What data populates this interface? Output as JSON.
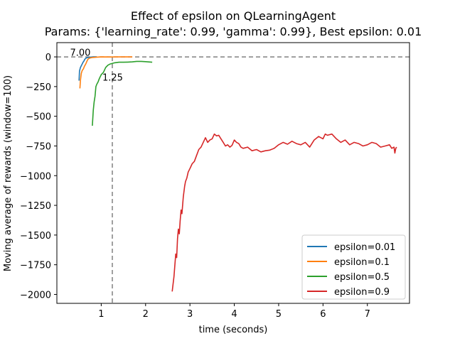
{
  "chart_data": {
    "type": "line",
    "title": "Effect of epsilon on QLearningAgent",
    "subtitle": "Params: {'learning_rate': 0.99, 'gamma': 0.99}, Best epsilon: 0.01",
    "xlabel": "time (seconds)",
    "ylabel": "Moving average of rewards (window=100)",
    "xlim": [
      0.0,
      7.95
    ],
    "ylim": [
      -2075,
      120
    ],
    "xticks": [
      1,
      2,
      3,
      4,
      5,
      6,
      7
    ],
    "yticks": [
      0,
      -250,
      -500,
      -750,
      -1000,
      -1250,
      -1500,
      -1750,
      -2000
    ],
    "legend_position": "lower-right",
    "reference_lines": [
      {
        "orientation": "horizontal",
        "value": 0,
        "style": "dashed",
        "color": "#808080"
      },
      {
        "orientation": "vertical",
        "value": 1.25,
        "style": "dashed",
        "color": "#808080"
      }
    ],
    "annotations": [
      {
        "text": "7.00",
        "x": 0.52,
        "y": 40
      },
      {
        "text": "1.25",
        "x": 1.25,
        "y": -170
      }
    ],
    "series": [
      {
        "name": "epsilon=0.01",
        "color": "#1f77b4",
        "points": [
          [
            0.5,
            -200
          ],
          [
            0.51,
            -120
          ],
          [
            0.53,
            -90
          ],
          [
            0.55,
            -75
          ],
          [
            0.57,
            -60
          ],
          [
            0.59,
            -45
          ],
          [
            0.61,
            -35
          ],
          [
            0.63,
            -20
          ],
          [
            0.66,
            -10
          ],
          [
            0.7,
            -5
          ],
          [
            0.75,
            -2
          ],
          [
            0.82,
            0
          ],
          [
            0.9,
            0
          ]
        ]
      },
      {
        "name": "epsilon=0.1",
        "color": "#ff7f0e",
        "points": [
          [
            0.52,
            -265
          ],
          [
            0.53,
            -200
          ],
          [
            0.55,
            -140
          ],
          [
            0.57,
            -115
          ],
          [
            0.6,
            -100
          ],
          [
            0.62,
            -80
          ],
          [
            0.65,
            -60
          ],
          [
            0.68,
            -35
          ],
          [
            0.7,
            -20
          ],
          [
            0.74,
            -10
          ],
          [
            0.8,
            -5
          ],
          [
            0.9,
            -2
          ],
          [
            1.0,
            0
          ],
          [
            1.2,
            -1
          ],
          [
            1.4,
            0
          ],
          [
            1.6,
            0
          ],
          [
            1.7,
            0
          ]
        ]
      },
      {
        "name": "epsilon=0.5",
        "color": "#2ca02c",
        "points": [
          [
            0.8,
            -580
          ],
          [
            0.82,
            -450
          ],
          [
            0.84,
            -380
          ],
          [
            0.86,
            -330
          ],
          [
            0.88,
            -250
          ],
          [
            0.9,
            -230
          ],
          [
            0.93,
            -210
          ],
          [
            0.96,
            -180
          ],
          [
            1.0,
            -150
          ],
          [
            1.05,
            -130
          ],
          [
            1.1,
            -90
          ],
          [
            1.15,
            -70
          ],
          [
            1.2,
            -60
          ],
          [
            1.3,
            -50
          ],
          [
            1.4,
            -45
          ],
          [
            1.5,
            -45
          ],
          [
            1.6,
            -44
          ],
          [
            1.7,
            -42
          ],
          [
            1.8,
            -38
          ],
          [
            1.9,
            -38
          ],
          [
            2.0,
            -40
          ],
          [
            2.1,
            -43
          ],
          [
            2.15,
            -45
          ]
        ]
      },
      {
        "name": "epsilon=0.9",
        "color": "#d62728",
        "points": [
          [
            2.6,
            -1975
          ],
          [
            2.62,
            -1910
          ],
          [
            2.64,
            -1850
          ],
          [
            2.66,
            -1750
          ],
          [
            2.68,
            -1660
          ],
          [
            2.7,
            -1690
          ],
          [
            2.72,
            -1530
          ],
          [
            2.74,
            -1450
          ],
          [
            2.76,
            -1490
          ],
          [
            2.78,
            -1380
          ],
          [
            2.8,
            -1290
          ],
          [
            2.82,
            -1320
          ],
          [
            2.85,
            -1180
          ],
          [
            2.88,
            -1090
          ],
          [
            2.9,
            -1050
          ],
          [
            2.93,
            -1020
          ],
          [
            2.96,
            -970
          ],
          [
            3.0,
            -940
          ],
          [
            3.05,
            -900
          ],
          [
            3.1,
            -880
          ],
          [
            3.15,
            -830
          ],
          [
            3.2,
            -780
          ],
          [
            3.25,
            -760
          ],
          [
            3.3,
            -720
          ],
          [
            3.35,
            -680
          ],
          [
            3.4,
            -720
          ],
          [
            3.45,
            -700
          ],
          [
            3.5,
            -690
          ],
          [
            3.55,
            -650
          ],
          [
            3.6,
            -665
          ],
          [
            3.65,
            -660
          ],
          [
            3.7,
            -690
          ],
          [
            3.75,
            -720
          ],
          [
            3.8,
            -750
          ],
          [
            3.85,
            -740
          ],
          [
            3.9,
            -760
          ],
          [
            3.95,
            -745
          ],
          [
            4.0,
            -700
          ],
          [
            4.05,
            -720
          ],
          [
            4.1,
            -730
          ],
          [
            4.15,
            -760
          ],
          [
            4.2,
            -770
          ],
          [
            4.3,
            -760
          ],
          [
            4.4,
            -790
          ],
          [
            4.5,
            -780
          ],
          [
            4.6,
            -800
          ],
          [
            4.7,
            -790
          ],
          [
            4.8,
            -785
          ],
          [
            4.9,
            -770
          ],
          [
            5.0,
            -740
          ],
          [
            5.1,
            -720
          ],
          [
            5.2,
            -735
          ],
          [
            5.3,
            -710
          ],
          [
            5.4,
            -730
          ],
          [
            5.5,
            -740
          ],
          [
            5.6,
            -720
          ],
          [
            5.7,
            -760
          ],
          [
            5.8,
            -700
          ],
          [
            5.9,
            -670
          ],
          [
            6.0,
            -690
          ],
          [
            6.05,
            -650
          ],
          [
            6.1,
            -660
          ],
          [
            6.2,
            -650
          ],
          [
            6.3,
            -690
          ],
          [
            6.4,
            -720
          ],
          [
            6.5,
            -700
          ],
          [
            6.6,
            -740
          ],
          [
            6.7,
            -720
          ],
          [
            6.8,
            -730
          ],
          [
            6.9,
            -750
          ],
          [
            7.0,
            -740
          ],
          [
            7.1,
            -720
          ],
          [
            7.2,
            -730
          ],
          [
            7.3,
            -760
          ],
          [
            7.4,
            -750
          ],
          [
            7.5,
            -740
          ],
          [
            7.55,
            -770
          ],
          [
            7.6,
            -760
          ],
          [
            7.62,
            -810
          ],
          [
            7.64,
            -770
          ],
          [
            7.66,
            -760
          ]
        ]
      }
    ]
  }
}
